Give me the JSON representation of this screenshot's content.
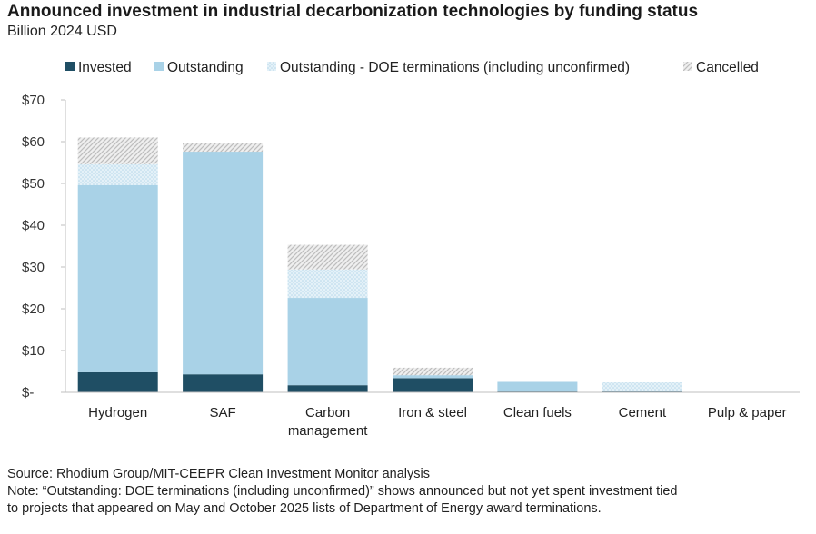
{
  "chart_data": {
    "type": "bar",
    "stacked": true,
    "title": "Announced investment in industrial decarbonization technologies by funding status",
    "subtitle": "Billion 2024 USD",
    "xlabel": "",
    "ylabel": "",
    "ylim": [
      0,
      70
    ],
    "yticks": [
      0,
      10,
      20,
      30,
      40,
      50,
      60,
      70
    ],
    "ytick_labels": [
      "$-",
      "$10",
      "$20",
      "$30",
      "$40",
      "$50",
      "$60",
      "$70"
    ],
    "grid": false,
    "legend_position": "top",
    "categories": [
      [
        "Hydrogen"
      ],
      [
        "SAF"
      ],
      [
        "Carbon",
        "management"
      ],
      [
        "Iron & steel"
      ],
      [
        "Clean fuels"
      ],
      [
        "Cement"
      ],
      [
        "Pulp & paper"
      ]
    ],
    "series": [
      {
        "name": "Invested",
        "color": "#1f4e64",
        "pattern": "solid",
        "values": [
          4.8,
          4.3,
          1.7,
          3.4,
          0.2,
          0.2,
          0.0
        ]
      },
      {
        "name": "Outstanding",
        "color": "#a9d2e7",
        "pattern": "solid",
        "values": [
          44.8,
          53.3,
          20.9,
          0.7,
          2.3,
          0.0,
          0.0
        ]
      },
      {
        "name": "Outstanding - DOE terminations (including unconfirmed)",
        "color": "#dcecf6",
        "pattern": "dotted",
        "values": [
          5.0,
          0.0,
          6.8,
          0.0,
          0.0,
          2.2,
          0.0
        ]
      },
      {
        "name": "Cancelled",
        "color": "#d6d6d6",
        "pattern": "hatched",
        "values": [
          6.4,
          2.1,
          5.9,
          1.8,
          0.0,
          0.0,
          0.0
        ]
      }
    ]
  },
  "footer": {
    "source": "Source: Rhodium Group/MIT-CEEPR Clean Investment Monitor analysis",
    "note_line1": "Note: “Outstanding: DOE terminations (including unconfirmed)” shows announced but not yet spent investment tied",
    "note_line2": "to projects that appeared on May and October 2025 lists of Department of Energy award terminations."
  }
}
